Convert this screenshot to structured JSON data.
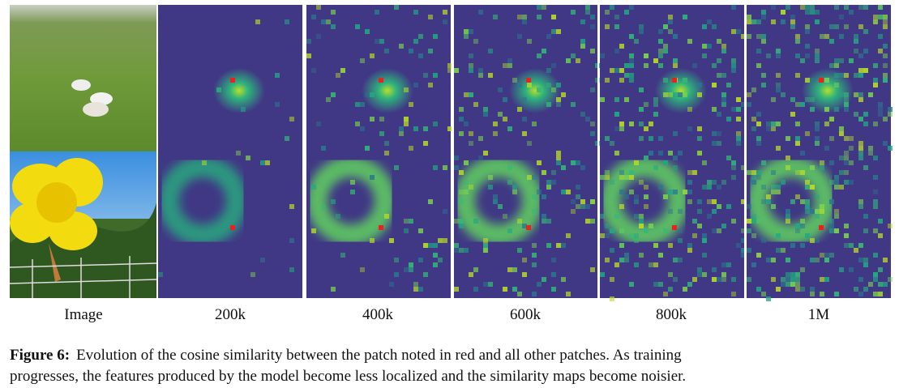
{
  "columns": [
    "Image",
    "200k",
    "400k",
    "600k",
    "800k",
    "1M"
  ],
  "caption": {
    "label": "Figure 6:",
    "lines": [
      "Evolution of the cosine similarity between the patch noted in red and all other patches.  As training",
      "progresses, the features produced by the model become less localized and the similarity maps become noisier."
    ]
  }
}
